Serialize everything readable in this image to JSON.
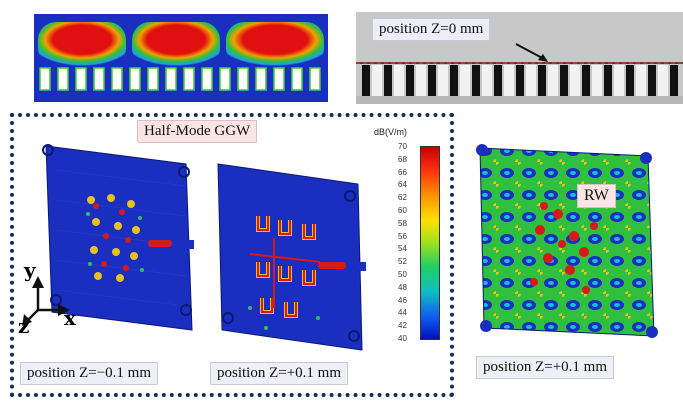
{
  "top_right": {
    "position_label": "position Z=0 mm"
  },
  "dashed_panel": {
    "title": "Half-Mode GGW",
    "left_position_label": "position Z=−0.1 mm",
    "right_position_label": "position Z=+0.1 mm",
    "axes": {
      "y": "y",
      "x": "x",
      "z": "z"
    }
  },
  "colorbar": {
    "unit": "dB(V/m)",
    "ticks": [
      "70",
      "68",
      "66",
      "64",
      "62",
      "60",
      "58",
      "56",
      "54",
      "52",
      "50",
      "48",
      "46",
      "44",
      "42",
      "40"
    ],
    "min": 40,
    "max": 70
  },
  "right_panel": {
    "tag": "RW",
    "position_label": "position Z=+0.1 mm"
  },
  "colors": {
    "field_blue": "#1a2fbf",
    "field_red": "#d61a1a",
    "dashed_border": "#1b2a5c"
  }
}
